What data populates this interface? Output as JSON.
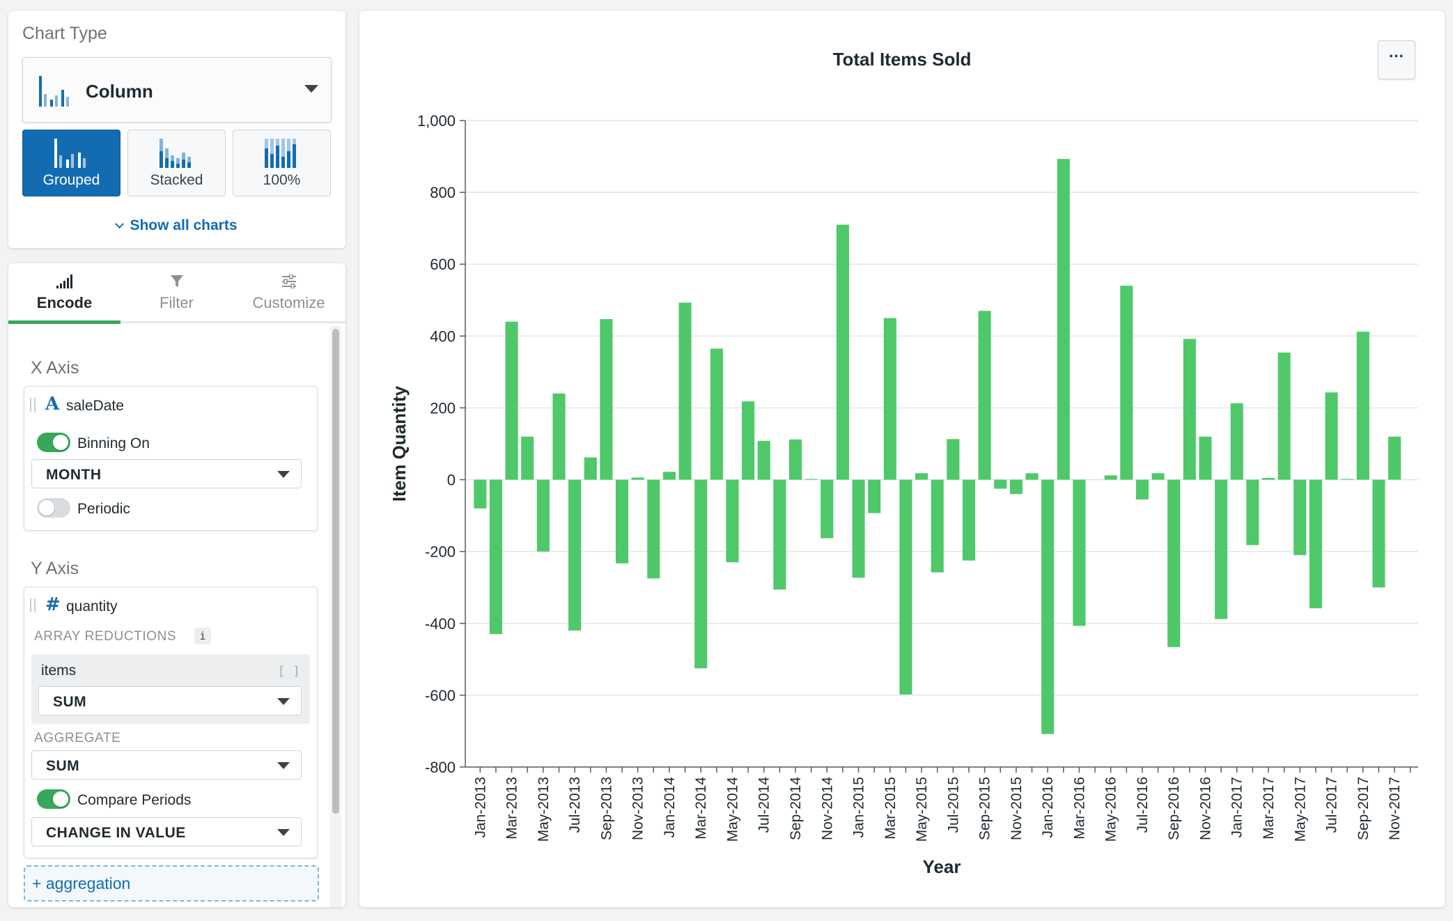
{
  "chart_type_panel": {
    "title": "Chart Type",
    "selected_type": "Column",
    "variants": [
      "Grouped",
      "Stacked",
      "100%"
    ],
    "active_variant": "Grouped",
    "show_all_label": "Show all charts"
  },
  "encode_panel": {
    "tabs": [
      "Encode",
      "Filter",
      "Customize"
    ],
    "active_tab": "Encode",
    "x_axis": {
      "title": "X Axis",
      "field_icon": "A",
      "field_name": "saleDate",
      "binning_label": "Binning On",
      "binning_on": true,
      "binning_value": "MONTH",
      "periodic_label": "Periodic",
      "periodic_on": false
    },
    "y_axis": {
      "title": "Y Axis",
      "field_icon": "#",
      "field_name": "quantity",
      "array_reductions_label": "ARRAY REDUCTIONS",
      "info_icon": "i",
      "reduction_field": "items",
      "reduction_bracket": "[ ]",
      "reduction_value": "SUM",
      "aggregate_label": "AGGREGATE",
      "aggregate_value": "SUM",
      "compare_label": "Compare Periods",
      "compare_on": true,
      "compare_value": "CHANGE IN VALUE"
    },
    "add_aggregation_label": "+ aggregation"
  },
  "chart": {
    "more_label": "···",
    "colors": {
      "bar": "#4fc86a",
      "grid": "#e3e5e7",
      "axis": "#555c61",
      "text": "#1f2a30"
    }
  },
  "chart_data": {
    "type": "bar",
    "title": "Total Items Sold",
    "xlabel": "Year",
    "ylabel": "Item Quantity",
    "ylim": [
      -800,
      1000
    ],
    "yticks": [
      1000,
      800,
      600,
      400,
      200,
      0,
      -200,
      -400,
      -600,
      -800
    ],
    "ytick_labels": [
      "1,000",
      "800",
      "600",
      "400",
      "200",
      "0",
      "-200",
      "-400",
      "-600",
      "-800"
    ],
    "grid": true,
    "categories": [
      "Jan-2013",
      "Feb-2013",
      "Mar-2013",
      "Apr-2013",
      "May-2013",
      "Jun-2013",
      "Jul-2013",
      "Aug-2013",
      "Sep-2013",
      "Oct-2013",
      "Nov-2013",
      "Dec-2013",
      "Jan-2014",
      "Feb-2014",
      "Mar-2014",
      "Apr-2014",
      "May-2014",
      "Jun-2014",
      "Jul-2014",
      "Aug-2014",
      "Sep-2014",
      "Oct-2014",
      "Nov-2014",
      "Dec-2014",
      "Jan-2015",
      "Feb-2015",
      "Mar-2015",
      "Apr-2015",
      "May-2015",
      "Jun-2015",
      "Jul-2015",
      "Aug-2015",
      "Sep-2015",
      "Oct-2015",
      "Nov-2015",
      "Dec-2015",
      "Jan-2016",
      "Feb-2016",
      "Mar-2016",
      "Apr-2016",
      "May-2016",
      "Jun-2016",
      "Jul-2016",
      "Aug-2016",
      "Sep-2016",
      "Oct-2016",
      "Nov-2016",
      "Dec-2016",
      "Jan-2017",
      "Feb-2017",
      "Mar-2017",
      "Apr-2017",
      "May-2017",
      "Jun-2017",
      "Jul-2017",
      "Aug-2017",
      "Sep-2017",
      "Oct-2017",
      "Nov-2017",
      "Dec-2017"
    ],
    "tick_labels": [
      "Jan-2013",
      "Mar-2013",
      "May-2013",
      "Jul-2013",
      "Sep-2013",
      "Nov-2013",
      "Jan-2014",
      "Mar-2014",
      "May-2014",
      "Jul-2014",
      "Sep-2014",
      "Nov-2014",
      "Jan-2015",
      "Mar-2015",
      "May-2015",
      "Jul-2015",
      "Sep-2015",
      "Nov-2015",
      "Jan-2016",
      "Mar-2016",
      "May-2016",
      "Jul-2016",
      "Sep-2016",
      "Nov-2016",
      "Jan-2017",
      "Mar-2017",
      "May-2017",
      "Jul-2017",
      "Sep-2017",
      "Nov-2017"
    ],
    "values": [
      -80,
      -430,
      440,
      120,
      -200,
      240,
      -420,
      62,
      447,
      -233,
      6,
      -275,
      22,
      493,
      -525,
      365,
      -230,
      218,
      108,
      -306,
      112,
      2,
      -163,
      710,
      -273,
      -93,
      450,
      -598,
      18,
      -258,
      113,
      -225,
      470,
      -25,
      -40,
      18,
      -708,
      893,
      -407,
      0,
      12,
      540,
      -55,
      18,
      -466,
      392,
      120,
      -388,
      213,
      -182,
      5,
      354,
      -210,
      -358,
      243,
      2,
      412,
      -300,
      120,
      0
    ]
  }
}
